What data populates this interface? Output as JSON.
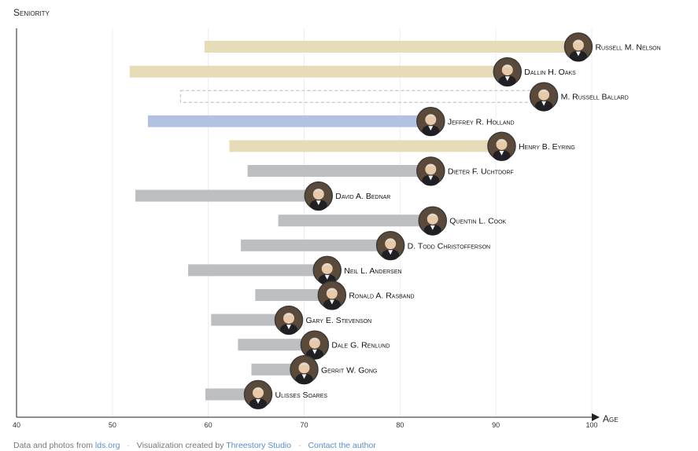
{
  "chart_data": {
    "type": "bar",
    "ylabel": "Seniority",
    "xlabel": "Age",
    "xlim": [
      40,
      100
    ],
    "xticks": [
      40,
      50,
      60,
      70,
      80,
      90,
      100
    ],
    "grid": true,
    "series": [
      {
        "name": "Russell M. Nelson",
        "start": 59.6,
        "end": 98.6,
        "bar": "gold"
      },
      {
        "name": "Dallin H. Oaks",
        "start": 51.8,
        "end": 91.2,
        "bar": "gold"
      },
      {
        "name": "M. Russell Ballard",
        "start": 57.1,
        "end": 95.0,
        "bar": "dashed"
      },
      {
        "name": "Jeffrey R. Holland",
        "start": 53.7,
        "end": 83.2,
        "bar": "blue"
      },
      {
        "name": "Henry B. Eyring",
        "start": 62.2,
        "end": 90.6,
        "bar": "gold"
      },
      {
        "name": "Dieter F. Uchtdorf",
        "start": 64.1,
        "end": 83.2,
        "bar": "gray"
      },
      {
        "name": "David A. Bednar",
        "start": 52.4,
        "end": 71.5,
        "bar": "gray"
      },
      {
        "name": "Quentin L. Cook",
        "start": 67.3,
        "end": 83.4,
        "bar": "gray"
      },
      {
        "name": "D. Todd Christofferson",
        "start": 63.4,
        "end": 79.0,
        "bar": "gray"
      },
      {
        "name": "Neil L. Andersen",
        "start": 57.9,
        "end": 72.4,
        "bar": "gray"
      },
      {
        "name": "Ronald A. Rasband",
        "start": 64.9,
        "end": 72.9,
        "bar": "gray"
      },
      {
        "name": "Gary E. Stevenson",
        "start": 60.3,
        "end": 68.4,
        "bar": "gray"
      },
      {
        "name": "Dale G. Renlund",
        "start": 63.1,
        "end": 71.1,
        "bar": "gray"
      },
      {
        "name": "Gerrit W. Gong",
        "start": 64.5,
        "end": 70.0,
        "bar": "gray"
      },
      {
        "name": "Ulisses Soares",
        "start": 59.7,
        "end": 65.2,
        "bar": "gray"
      }
    ],
    "colors": {
      "gold": "#e6dcb8",
      "blue": "#b3c2e2",
      "gray": "#bdbec2",
      "dashed": "#b8b8b8",
      "grid": "#eeeeee",
      "axis": "#222222",
      "portrait": "#5b4a3a"
    },
    "icons": {
      "portrait": "person-portrait-icon"
    }
  },
  "footer": {
    "prefix": "Data and photos from",
    "source_link": "lds.org",
    "credit_prefix": "Visualization created by",
    "studio_link": "Threestory Studio",
    "contact_link": "Contact the author"
  }
}
